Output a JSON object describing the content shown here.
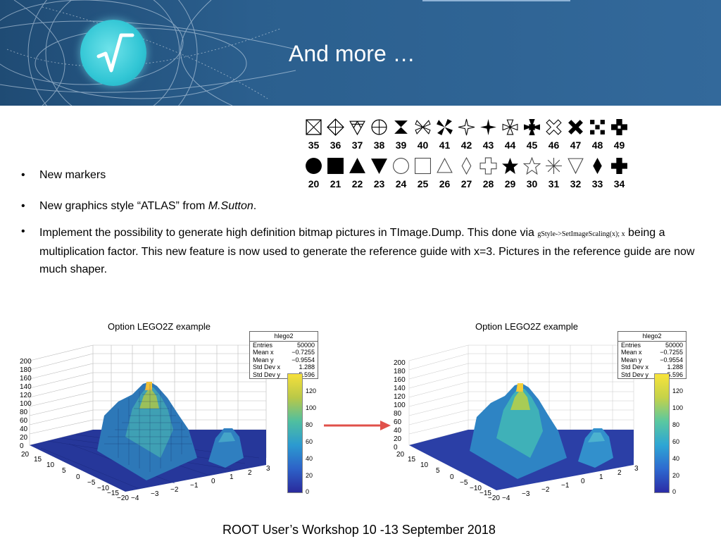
{
  "slide": {
    "title": "And more …",
    "footer": "ROOT User’s Workshop  10 -13 September 2018"
  },
  "colors": {
    "header_bg": "#2b5f8e",
    "logo": "#32c6d5",
    "arrow": "#e0504a"
  },
  "markers": {
    "row1": [
      "35",
      "36",
      "37",
      "38",
      "39",
      "40",
      "41",
      "42",
      "43",
      "44",
      "45",
      "46",
      "47",
      "48",
      "49"
    ],
    "row2": [
      "20",
      "21",
      "22",
      "23",
      "24",
      "25",
      "26",
      "27",
      "28",
      "29",
      "30",
      "31",
      "32",
      "33",
      "34"
    ]
  },
  "bullets": {
    "b1": "New markers",
    "b2_prefix": "New graphics style “ATLAS” from ",
    "b2_author": "M.Sutton",
    "b2_suffix": ".",
    "b3_part1": "Implement the possibility to generate high definition bitmap pictures in TImage.Dump. This done via ",
    "b3_code": "gStyle->SetImageScaling(x); x",
    "b3_part2": " being a multiplication factor. This new feature is now used to generate the reference guide with x=3. Pictures in the reference guide are now much shaper."
  },
  "plots": {
    "left": {
      "title": "Option LEGO2Z example",
      "stats": {
        "name": "hlego2",
        "rows": [
          {
            "k": "Entries",
            "v": "50000"
          },
          {
            "k": "Mean x",
            "v": "−0.7255"
          },
          {
            "k": "Mean y",
            "v": "−0.9554"
          },
          {
            "k": "Std Dev x",
            "v": "1.288"
          },
          {
            "k": "Std Dev y",
            "v": "5.596"
          }
        ]
      },
      "zticks": [
        "200",
        "180",
        "160",
        "140",
        "120",
        "100",
        "80",
        "60",
        "40",
        "20",
        "0"
      ],
      "cbticks": [
        "120",
        "100",
        "80",
        "60",
        "40",
        "20",
        "0"
      ],
      "yticks": [
        "20",
        "15",
        "10",
        "5",
        "0",
        "−5",
        "−10",
        "−15",
        "−20"
      ],
      "xticks": [
        "−4",
        "−3",
        "−2",
        "−1",
        "0",
        "1",
        "2",
        "3"
      ]
    },
    "right": {
      "title": "Option LEGO2Z example",
      "stats": {
        "name": "hlego2",
        "rows": [
          {
            "k": "Entries",
            "v": "50000"
          },
          {
            "k": "Mean x",
            "v": "−0.7255"
          },
          {
            "k": "Mean y",
            "v": "−0.9554"
          },
          {
            "k": "Std Dev x",
            "v": "1.288"
          },
          {
            "k": "Std Dev y",
            "v": "5.596"
          }
        ]
      },
      "zticks": [
        "200",
        "180",
        "160",
        "140",
        "120",
        "100",
        "80",
        "60",
        "40",
        "20",
        "0"
      ],
      "cbticks": [
        "120",
        "100",
        "80",
        "60",
        "40",
        "20",
        "0"
      ],
      "yticks": [
        "20",
        "15",
        "10",
        "5",
        "0",
        "−5",
        "−10",
        "−15",
        "−20"
      ],
      "xticks": [
        "−4",
        "−3",
        "−2",
        "−1",
        "0",
        "1",
        "2",
        "3"
      ]
    }
  }
}
